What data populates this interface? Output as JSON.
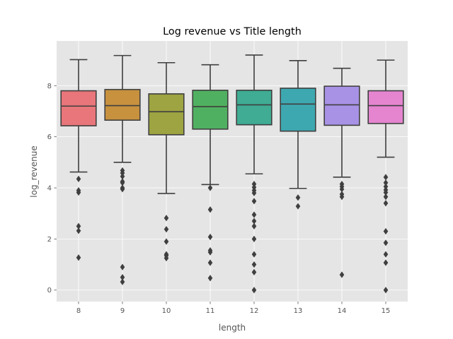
{
  "chart_data": {
    "type": "box",
    "title": "Log revenue vs Title length",
    "xlabel": "length",
    "ylabel": "log_revenue",
    "categories": [
      "8",
      "9",
      "10",
      "11",
      "12",
      "13",
      "14",
      "15"
    ],
    "ylim": [
      -0.45,
      9.75
    ],
    "yticks": [
      0,
      2,
      4,
      6,
      8
    ],
    "grid": true,
    "boxes": [
      {
        "category": "8",
        "color": "#e8767a",
        "whisker_low": 4.62,
        "q1": 6.43,
        "median": 7.2,
        "q3": 7.8,
        "whisker_high": 9.02,
        "outliers": [
          4.35,
          3.9,
          3.82,
          2.5,
          2.32,
          1.27
        ]
      },
      {
        "category": "9",
        "color": "#c7913e",
        "whisker_low": 5.0,
        "q1": 6.65,
        "median": 7.22,
        "q3": 7.85,
        "whisker_high": 9.18,
        "outliers": [
          4.68,
          4.58,
          4.45,
          4.25,
          4.2,
          4.0,
          3.95,
          0.9,
          0.5,
          0.32
        ]
      },
      {
        "category": "10",
        "color": "#9da441",
        "whisker_low": 3.78,
        "q1": 6.08,
        "median": 6.98,
        "q3": 7.68,
        "whisker_high": 8.9,
        "outliers": [
          2.82,
          2.38,
          1.9,
          1.4,
          1.35,
          1.25
        ]
      },
      {
        "category": "11",
        "color": "#50b061",
        "whisker_low": 4.13,
        "q1": 6.3,
        "median": 7.18,
        "q3": 7.82,
        "whisker_high": 8.82,
        "outliers": [
          4.0,
          3.15,
          2.08,
          1.55,
          1.48,
          1.07,
          0.47
        ]
      },
      {
        "category": "12",
        "color": "#3fac93",
        "whisker_low": 4.55,
        "q1": 6.47,
        "median": 7.25,
        "q3": 7.82,
        "whisker_high": 9.2,
        "outliers": [
          4.15,
          4.02,
          3.9,
          3.8,
          3.48,
          2.95,
          2.7,
          2.5,
          2.0,
          1.4,
          1.0,
          0.7,
          0.0
        ]
      },
      {
        "category": "13",
        "color": "#3ea8b0",
        "whisker_low": 3.98,
        "q1": 6.22,
        "median": 7.28,
        "q3": 7.9,
        "whisker_high": 8.98,
        "outliers": [
          3.62,
          3.28
        ]
      },
      {
        "category": "14",
        "color": "#a792e6",
        "whisker_low": 4.42,
        "q1": 6.45,
        "median": 7.25,
        "q3": 7.98,
        "whisker_high": 8.68,
        "outliers": [
          4.15,
          4.05,
          3.95,
          3.75,
          3.65,
          0.6
        ]
      },
      {
        "category": "15",
        "color": "#e585d0",
        "whisker_low": 5.2,
        "q1": 6.52,
        "median": 7.22,
        "q3": 7.8,
        "whisker_high": 9.0,
        "outliers": [
          4.42,
          4.2,
          4.05,
          3.92,
          3.82,
          3.65,
          3.4,
          2.3,
          1.85,
          1.4,
          1.07,
          0.0
        ]
      }
    ]
  },
  "colors": {
    "background": "#ffffff",
    "plot_background": "#e5e5e5",
    "grid": "#ffffff",
    "box_edge": "#3f3f3f",
    "tick_text": "#555555",
    "title_text": "#000000"
  }
}
